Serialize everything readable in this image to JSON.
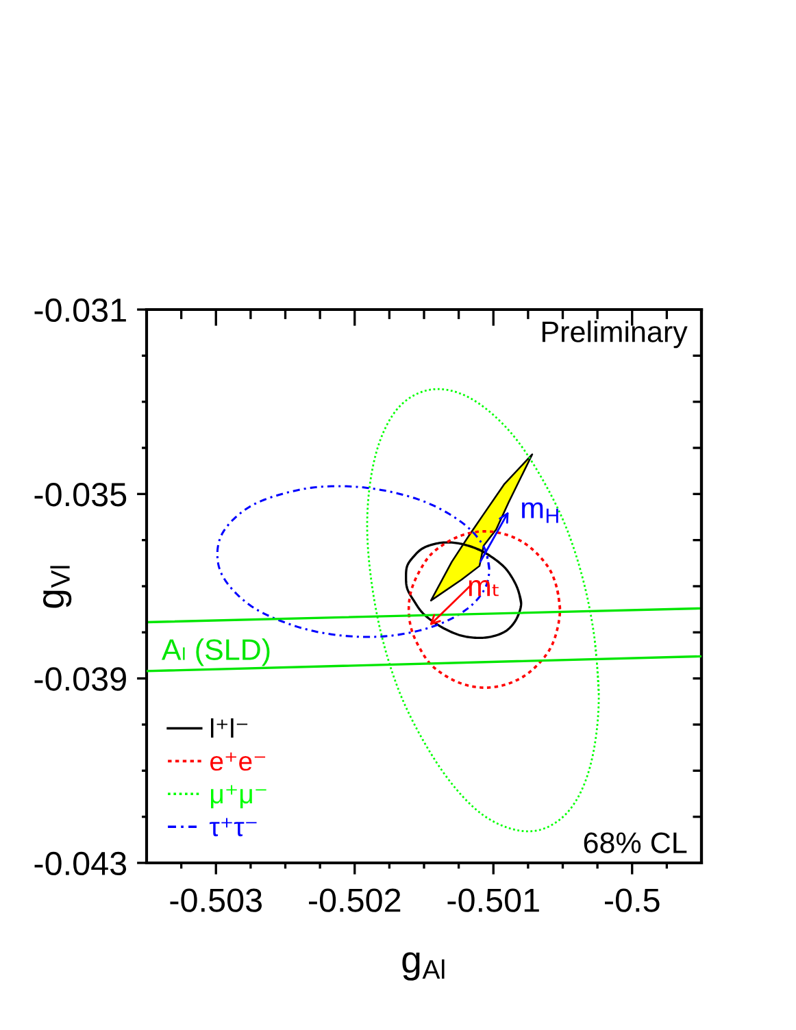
{
  "chart_data": {
    "type": "line",
    "xlabel": "g$_{Al}$",
    "ylabel": "g$_{Vl}$",
    "xlim": [
      -0.5035,
      -0.4995
    ],
    "ylim": [
      -0.043,
      -0.031
    ],
    "xticks": [
      {
        "value": -0.50325,
        "label": null
      },
      -0.503,
      {
        "value": -0.50275,
        "label": null
      },
      {
        "value": -0.5025,
        "label": null
      },
      {
        "value": -0.50225,
        "label": null
      },
      -0.502,
      {
        "value": -0.50175,
        "label": null
      },
      {
        "value": -0.5015,
        "label": null
      },
      {
        "value": -0.50125,
        "label": null
      },
      -0.501,
      {
        "value": -0.50075,
        "label": null
      },
      {
        "value": -0.5005,
        "label": null
      },
      {
        "value": -0.50025,
        "label": null
      },
      -0.5,
      {
        "value": -0.49975,
        "label": null
      }
    ],
    "yticks": [
      -0.031,
      {
        "value": -0.032,
        "label": null
      },
      {
        "value": -0.033,
        "label": null
      },
      {
        "value": -0.034,
        "label": null
      },
      -0.035,
      {
        "value": -0.036,
        "label": null
      },
      {
        "value": -0.037,
        "label": null
      },
      {
        "value": -0.038,
        "label": null
      },
      -0.039,
      {
        "value": -0.04,
        "label": null
      },
      {
        "value": -0.041,
        "label": null
      },
      {
        "value": -0.042,
        "label": null
      },
      -0.043
    ],
    "legend": "bottom left",
    "series": [
      {
        "type": "area",
        "color": "#ffff00",
        "x": [
          -0.50072,
          -0.50092,
          -0.50108,
          -0.50118,
          -0.5013,
          -0.50145,
          -0.50123,
          -0.5011,
          -0.50107,
          -0.50098,
          -0.50089
        ],
        "values": [
          -0.03414,
          -0.03478,
          -0.03548,
          -0.03592,
          -0.03647,
          -0.03731,
          -0.03686,
          -0.03656,
          -0.03612,
          -0.03577,
          -0.03518
        ]
      },
      {
        "name": "l⁺l⁻",
        "color": "#000000",
        "line_style": "solid",
        "x": [
          -0.5008,
          -0.50082,
          -0.50086,
          -0.50092,
          -0.50101,
          -0.50111,
          -0.50122,
          -0.50132,
          -0.50142,
          -0.50151,
          -0.50157,
          -0.50162,
          -0.50163,
          -0.50162,
          -0.50157,
          -0.50151,
          -0.50142,
          -0.50132,
          -0.50122,
          -0.50111,
          -0.50101,
          -0.50092,
          -0.50086,
          -0.50082,
          -0.5008,
          -0.50082
        ],
        "values": [
          -0.03737,
          -0.0371,
          -0.03684,
          -0.03659,
          -0.03637,
          -0.0362,
          -0.03609,
          -0.03605,
          -0.03608,
          -0.03618,
          -0.03634,
          -0.03655,
          -0.0368,
          -0.03706,
          -0.03733,
          -0.03758,
          -0.0378,
          -0.03797,
          -0.03808,
          -0.03812,
          -0.03809,
          -0.03799,
          -0.03783,
          -0.03762,
          -0.03737,
          -0.0371
        ]
      },
      {
        "name": "e⁺e⁻",
        "color": "#ff0000",
        "line_style": "dashed",
        "x": [
          -0.50052,
          -0.50054,
          -0.50059,
          -0.50068,
          -0.50079,
          -0.50092,
          -0.50106,
          -0.5012,
          -0.50133,
          -0.50145,
          -0.50153,
          -0.50159,
          -0.50161,
          -0.50159,
          -0.50153,
          -0.50145,
          -0.50133,
          -0.5012,
          -0.50106,
          -0.50092,
          -0.50079,
          -0.50068,
          -0.50059,
          -0.50054,
          -0.50052,
          -0.50054
        ],
        "values": [
          -0.0375,
          -0.03707,
          -0.03666,
          -0.03631,
          -0.03604,
          -0.03587,
          -0.03581,
          -0.03587,
          -0.03604,
          -0.03631,
          -0.03666,
          -0.03707,
          -0.0375,
          -0.03794,
          -0.03835,
          -0.0387,
          -0.03897,
          -0.03914,
          -0.0392,
          -0.03914,
          -0.03897,
          -0.0387,
          -0.03835,
          -0.03794,
          -0.0375,
          -0.03707
        ]
      },
      {
        "name": "μ⁺μ⁻",
        "color": "#00ff00",
        "line_style": "dotted",
        "x": [
          -0.50024,
          -0.50027,
          -0.50035,
          -0.50048,
          -0.50066,
          -0.50086,
          -0.50108,
          -0.50129,
          -0.50149,
          -0.50167,
          -0.5018,
          -0.50188,
          -0.50191,
          -0.50188,
          -0.5018,
          -0.50167,
          -0.50149,
          -0.50129,
          -0.50108,
          -0.50086,
          -0.50066,
          -0.50048,
          -0.50035,
          -0.50027,
          -0.50024,
          -0.50027
        ],
        "values": [
          -0.03936,
          -0.03815,
          -0.0369,
          -0.03569,
          -0.03461,
          -0.03372,
          -0.03309,
          -0.03277,
          -0.03276,
          -0.03308,
          -0.03371,
          -0.03459,
          -0.03568,
          -0.03688,
          -0.03814,
          -0.03935,
          -0.04043,
          -0.04132,
          -0.04195,
          -0.04227,
          -0.04228,
          -0.04195,
          -0.04133,
          -0.04045,
          -0.03936,
          -0.03815
        ]
      },
      {
        "name": "τ⁺τ⁻",
        "color": "#0000ff",
        "line_style": "dashdot",
        "x": [
          -0.50103,
          -0.50106,
          -0.50116,
          -0.50132,
          -0.50152,
          -0.50176,
          -0.50201,
          -0.50227,
          -0.5025,
          -0.50271,
          -0.50286,
          -0.50296,
          -0.50299,
          -0.50296,
          -0.50286,
          -0.50271,
          -0.5025,
          -0.50227,
          -0.50201,
          -0.50176,
          -0.50152,
          -0.50132,
          -0.50116,
          -0.50106,
          -0.50103,
          -0.50106
        ],
        "values": [
          -0.03663,
          -0.0362,
          -0.03579,
          -0.03543,
          -0.03514,
          -0.03494,
          -0.03484,
          -0.03485,
          -0.03498,
          -0.0352,
          -0.03551,
          -0.03589,
          -0.03631,
          -0.03673,
          -0.03714,
          -0.0375,
          -0.03779,
          -0.03799,
          -0.03809,
          -0.03808,
          -0.03795,
          -0.03773,
          -0.03742,
          -0.03704,
          -0.03663,
          -0.0362
        ]
      },
      {
        "color": "#00e600",
        "line_style": "solid",
        "x": [
          -0.5035,
          -0.4995
        ],
        "values": [
          -0.03778,
          -0.03748
        ]
      },
      {
        "color": "#00e600",
        "line_style": "solid",
        "x": [
          -0.5035,
          -0.4995
        ],
        "values": [
          -0.03884,
          -0.03852
        ]
      }
    ],
    "annotations": [
      "Preliminary",
      "68% CL",
      "Aₗ (SLD)",
      {
        "text": "mₜ",
        "x": -0.50146,
        "y": -0.03785
      },
      {
        "text": "m$_{H}$",
        "x": -0.50089,
        "y": -0.03538
      }
    ]
  }
}
